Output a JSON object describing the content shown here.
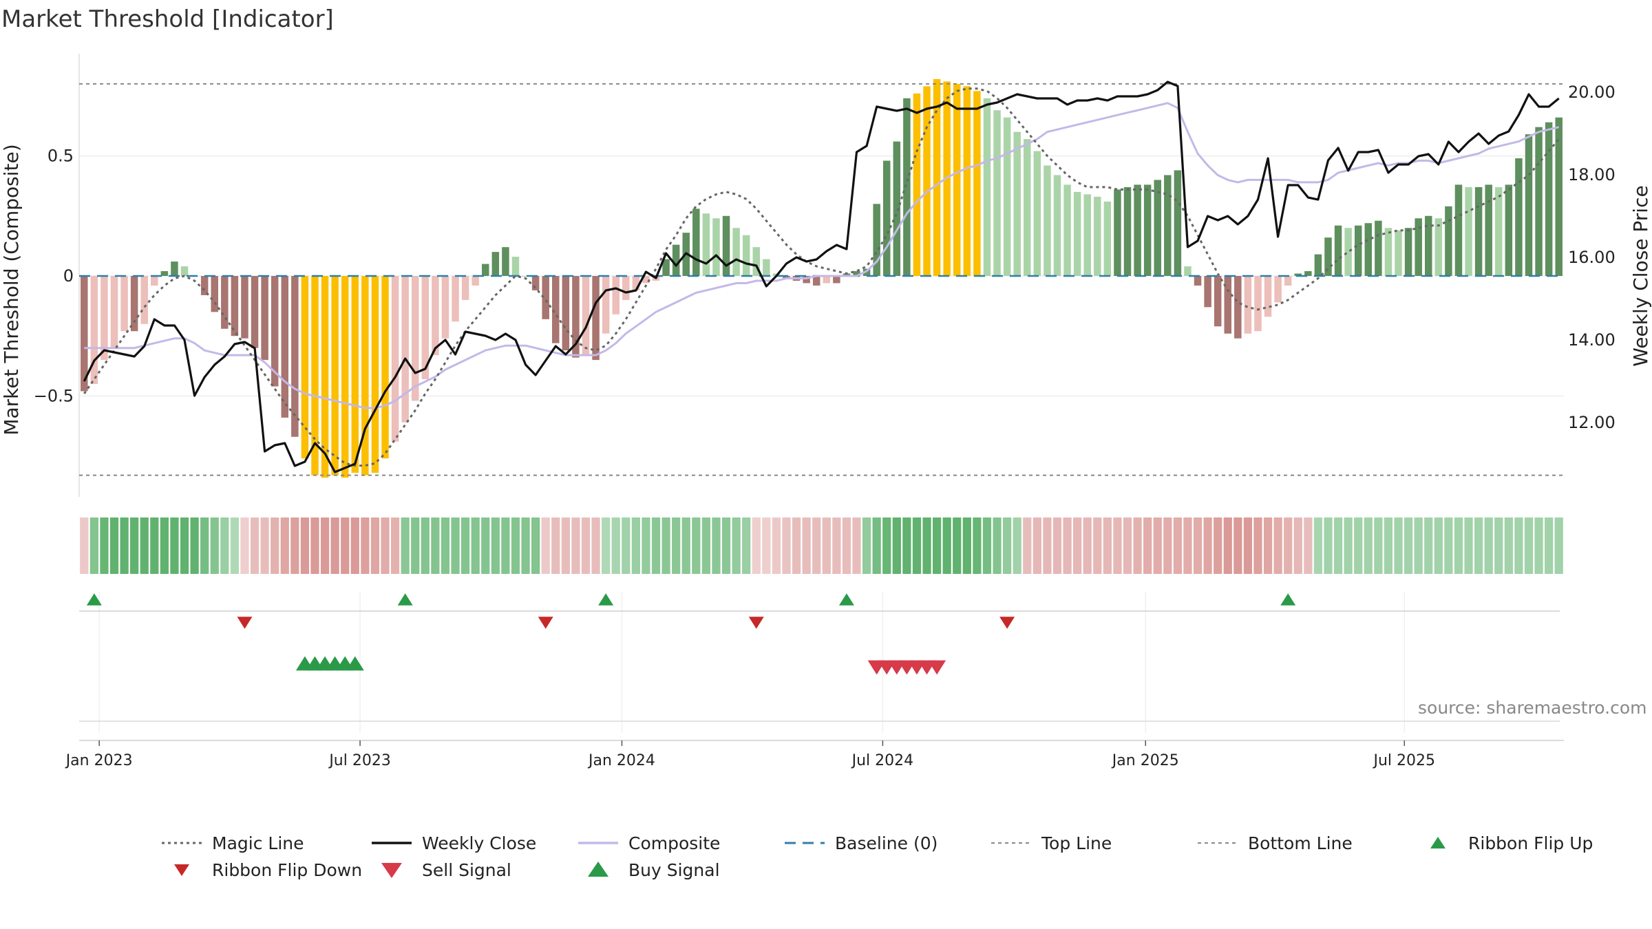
{
  "title": "Market Threshold [Indicator]",
  "source": "source: sharemaestro.com",
  "colors": {
    "magic": "#666666",
    "close": "#111111",
    "composite": "#c4b8e8",
    "baseline": "#2f7fa8",
    "top_line": "#888888",
    "bottom_line": "#888888",
    "bar_pos_strong": "#5e8f5e",
    "bar_pos_weak": "#aad4a8",
    "bar_neg_strong": "#a87570",
    "bar_neg_weak": "#ecbfba",
    "bar_extreme": "#fbbf00",
    "ribbon_green": "#4aa85a",
    "ribbon_red": "#c96a66",
    "buy": "#2a9a48",
    "sell": "#d73a49",
    "flip_up": "#2a9a48",
    "flip_down": "#c62828"
  },
  "chart_data": {
    "type": "bar",
    "title": "Market Threshold [Indicator]",
    "ylabel": "Market Threshold (Composite)",
    "y2label": "Weekly Close Price",
    "ylim": [
      -0.92,
      0.92
    ],
    "y2lim": [
      10.2,
      20.9
    ],
    "y_ticks": [
      -0.5,
      0,
      0.5
    ],
    "y_tick_labels": [
      "−0.5",
      "0",
      "0.5"
    ],
    "y2_ticks": [
      12,
      14,
      16,
      18,
      20
    ],
    "y2_tick_labels": [
      "12.00",
      "14.00",
      "16.00",
      "18.00",
      "20.00"
    ],
    "x_ticks": [
      {
        "label": "Jan 2023",
        "week": 1.5
      },
      {
        "label": "Jul 2023",
        "week": 27.5
      },
      {
        "label": "Jan 2024",
        "week": 53.6
      },
      {
        "label": "Jul 2024",
        "week": 79.6
      },
      {
        "label": "Jan 2025",
        "week": 105.8
      },
      {
        "label": "Jul 2025",
        "week": 131.6
      }
    ],
    "top_line": 0.8,
    "bottom_line": -0.83,
    "baseline": 0,
    "composite_bars": [
      -0.48,
      -0.45,
      -0.35,
      -0.3,
      -0.23,
      -0.23,
      -0.2,
      -0.04,
      0.02,
      0.06,
      0.04,
      0.0,
      -0.08,
      -0.15,
      -0.22,
      -0.25,
      -0.26,
      -0.3,
      -0.35,
      -0.46,
      -0.59,
      -0.67,
      -0.76,
      -0.83,
      -0.84,
      -0.83,
      -0.84,
      -0.82,
      -0.83,
      -0.82,
      -0.76,
      -0.69,
      -0.61,
      -0.52,
      -0.43,
      -0.33,
      -0.26,
      -0.19,
      -0.1,
      -0.04,
      0.05,
      0.1,
      0.12,
      0.08,
      0.0,
      -0.06,
      -0.18,
      -0.28,
      -0.31,
      -0.34,
      -0.33,
      -0.35,
      -0.24,
      -0.16,
      -0.1,
      -0.06,
      -0.03,
      -0.02,
      0.07,
      0.13,
      0.18,
      0.28,
      0.26,
      0.24,
      0.25,
      0.2,
      0.17,
      0.12,
      0.07,
      0.01,
      -0.01,
      -0.02,
      -0.03,
      -0.04,
      -0.03,
      -0.03,
      0.01,
      0.02,
      0.03,
      0.3,
      0.48,
      0.56,
      0.74,
      0.76,
      0.79,
      0.82,
      0.81,
      0.8,
      0.79,
      0.77,
      0.74,
      0.69,
      0.66,
      0.6,
      0.57,
      0.52,
      0.46,
      0.42,
      0.38,
      0.35,
      0.34,
      0.33,
      0.31,
      0.36,
      0.37,
      0.38,
      0.38,
      0.4,
      0.42,
      0.44,
      0.04,
      -0.04,
      -0.13,
      -0.21,
      -0.24,
      -0.26,
      -0.24,
      -0.23,
      -0.17,
      -0.11,
      -0.04,
      0.01,
      0.02,
      0.09,
      0.16,
      0.21,
      0.2,
      0.21,
      0.22,
      0.23,
      0.2,
      0.19,
      0.2,
      0.24,
      0.25,
      0.24,
      0.29,
      0.38,
      0.37,
      0.37,
      0.38,
      0.37,
      0.38,
      0.49,
      0.59,
      0.62,
      0.64,
      0.66
    ],
    "weekly_close": [
      13.0,
      13.5,
      13.75,
      13.7,
      13.65,
      13.6,
      13.85,
      14.5,
      14.35,
      14.35,
      14.0,
      12.65,
      13.1,
      13.4,
      13.6,
      13.9,
      13.95,
      13.8,
      11.3,
      11.45,
      11.5,
      10.95,
      11.05,
      11.5,
      11.25,
      10.8,
      10.9,
      11.0,
      11.85,
      12.3,
      12.75,
      13.1,
      13.55,
      13.2,
      13.3,
      13.8,
      14.0,
      13.65,
      14.2,
      14.15,
      14.1,
      14.0,
      14.15,
      14.0,
      13.4,
      13.15,
      13.5,
      13.85,
      13.65,
      13.9,
      14.3,
      14.9,
      15.2,
      15.25,
      15.15,
      15.2,
      15.65,
      15.5,
      16.1,
      15.8,
      16.1,
      15.95,
      15.85,
      16.05,
      15.8,
      15.95,
      15.85,
      15.8,
      15.3,
      15.55,
      15.85,
      16.0,
      15.9,
      15.95,
      16.15,
      16.3,
      16.2,
      18.55,
      18.7,
      19.65,
      19.6,
      19.55,
      19.6,
      19.5,
      19.6,
      19.65,
      19.75,
      19.6,
      19.6,
      19.6,
      19.7,
      19.75,
      19.85,
      19.95,
      19.9,
      19.85,
      19.85,
      19.85,
      19.7,
      19.8,
      19.8,
      19.85,
      19.8,
      19.9,
      19.9,
      19.9,
      19.95,
      20.05,
      20.25,
      20.15,
      16.25,
      16.4,
      17.0,
      16.9,
      17.0,
      16.8,
      17.0,
      17.4,
      18.4,
      16.5,
      17.75,
      17.75,
      17.45,
      17.4,
      18.35,
      18.65,
      18.1,
      18.55,
      18.55,
      18.6,
      18.05,
      18.25,
      18.25,
      18.45,
      18.5,
      18.25,
      18.8,
      18.55,
      18.8,
      19.0,
      18.75,
      18.95,
      19.05,
      19.45,
      19.95,
      19.65,
      19.65,
      19.85
    ],
    "composite_line": [
      -0.3,
      -0.3,
      -0.3,
      -0.3,
      -0.3,
      -0.3,
      -0.29,
      -0.28,
      -0.27,
      -0.26,
      -0.26,
      -0.28,
      -0.31,
      -0.32,
      -0.33,
      -0.33,
      -0.33,
      -0.33,
      -0.36,
      -0.4,
      -0.44,
      -0.47,
      -0.49,
      -0.5,
      -0.51,
      -0.52,
      -0.53,
      -0.54,
      -0.55,
      -0.55,
      -0.54,
      -0.52,
      -0.49,
      -0.46,
      -0.44,
      -0.42,
      -0.39,
      -0.37,
      -0.35,
      -0.33,
      -0.31,
      -0.3,
      -0.29,
      -0.29,
      -0.29,
      -0.3,
      -0.31,
      -0.32,
      -0.33,
      -0.33,
      -0.33,
      -0.33,
      -0.31,
      -0.28,
      -0.24,
      -0.21,
      -0.18,
      -0.15,
      -0.13,
      -0.11,
      -0.09,
      -0.07,
      -0.06,
      -0.05,
      -0.04,
      -0.03,
      -0.03,
      -0.02,
      -0.02,
      -0.02,
      -0.01,
      -0.01,
      -0.01,
      0.0,
      0.0,
      0.0,
      0.0,
      0.0,
      0.02,
      0.06,
      0.12,
      0.19,
      0.26,
      0.31,
      0.35,
      0.38,
      0.41,
      0.43,
      0.45,
      0.46,
      0.48,
      0.49,
      0.51,
      0.53,
      0.55,
      0.57,
      0.6,
      0.61,
      0.62,
      0.63,
      0.64,
      0.65,
      0.66,
      0.67,
      0.68,
      0.69,
      0.7,
      0.71,
      0.72,
      0.7,
      0.6,
      0.51,
      0.46,
      0.42,
      0.4,
      0.39,
      0.4,
      0.4,
      0.4,
      0.4,
      0.4,
      0.39,
      0.39,
      0.39,
      0.4,
      0.43,
      0.44,
      0.45,
      0.46,
      0.47,
      0.46,
      0.47,
      0.47,
      0.48,
      0.48,
      0.47,
      0.48,
      0.49,
      0.5,
      0.51,
      0.53,
      0.54,
      0.55,
      0.56,
      0.58,
      0.6,
      0.61,
      0.62
    ],
    "magic_line": [
      -0.49,
      -0.43,
      -0.37,
      -0.31,
      -0.25,
      -0.19,
      -0.13,
      -0.08,
      -0.04,
      -0.01,
      0.0,
      -0.02,
      -0.06,
      -0.11,
      -0.17,
      -0.23,
      -0.29,
      -0.35,
      -0.41,
      -0.47,
      -0.53,
      -0.58,
      -0.63,
      -0.68,
      -0.72,
      -0.75,
      -0.78,
      -0.79,
      -0.79,
      -0.78,
      -0.74,
      -0.68,
      -0.62,
      -0.56,
      -0.49,
      -0.43,
      -0.36,
      -0.29,
      -0.23,
      -0.18,
      -0.13,
      -0.08,
      -0.04,
      0.0,
      -0.01,
      -0.05,
      -0.1,
      -0.16,
      -0.22,
      -0.27,
      -0.3,
      -0.31,
      -0.29,
      -0.24,
      -0.18,
      -0.11,
      -0.04,
      0.03,
      0.11,
      0.17,
      0.24,
      0.29,
      0.32,
      0.34,
      0.35,
      0.34,
      0.32,
      0.28,
      0.23,
      0.18,
      0.13,
      0.09,
      0.06,
      0.04,
      0.03,
      0.02,
      0.01,
      0.02,
      0.04,
      0.1,
      0.17,
      0.26,
      0.39,
      0.52,
      0.62,
      0.69,
      0.74,
      0.77,
      0.78,
      0.78,
      0.77,
      0.74,
      0.7,
      0.65,
      0.6,
      0.55,
      0.5,
      0.46,
      0.42,
      0.39,
      0.37,
      0.37,
      0.37,
      0.36,
      0.36,
      0.36,
      0.36,
      0.35,
      0.34,
      0.31,
      0.25,
      0.17,
      0.09,
      0.01,
      -0.06,
      -0.11,
      -0.13,
      -0.14,
      -0.13,
      -0.12,
      -0.1,
      -0.07,
      -0.04,
      -0.01,
      0.03,
      0.07,
      0.1,
      0.13,
      0.15,
      0.17,
      0.18,
      0.19,
      0.19,
      0.2,
      0.21,
      0.21,
      0.23,
      0.25,
      0.27,
      0.29,
      0.31,
      0.33,
      0.36,
      0.39,
      0.42,
      0.47,
      0.52,
      0.57
    ],
    "ribbon": [
      -0.2,
      0.6,
      0.8,
      0.85,
      0.85,
      0.85,
      0.85,
      0.85,
      0.85,
      0.85,
      0.85,
      0.85,
      0.7,
      0.6,
      0.45,
      0.3,
      -0.15,
      -0.3,
      -0.3,
      -0.4,
      -0.5,
      -0.55,
      -0.6,
      -0.6,
      -0.6,
      -0.6,
      -0.6,
      -0.6,
      -0.55,
      -0.5,
      -0.45,
      -0.4,
      0.55,
      0.6,
      0.6,
      0.6,
      0.6,
      0.6,
      0.6,
      0.6,
      0.6,
      0.6,
      0.6,
      0.6,
      0.6,
      0.6,
      -0.2,
      -0.3,
      -0.3,
      -0.3,
      -0.3,
      -0.3,
      0.3,
      0.35,
      0.4,
      0.45,
      0.5,
      0.55,
      0.55,
      0.55,
      0.55,
      0.55,
      0.55,
      0.55,
      0.55,
      0.5,
      0.45,
      -0.15,
      -0.15,
      -0.2,
      -0.25,
      -0.3,
      -0.3,
      -0.3,
      -0.3,
      -0.3,
      -0.3,
      -0.3,
      0.5,
      0.7,
      0.8,
      0.85,
      0.85,
      0.85,
      0.85,
      0.85,
      0.85,
      0.85,
      0.85,
      0.8,
      0.7,
      0.6,
      0.5,
      0.4,
      -0.3,
      -0.35,
      -0.35,
      -0.35,
      -0.35,
      -0.35,
      -0.35,
      -0.35,
      -0.35,
      -0.35,
      -0.35,
      -0.4,
      -0.45,
      -0.45,
      -0.45,
      -0.45,
      -0.45,
      -0.45,
      -0.5,
      -0.55,
      -0.6,
      -0.6,
      -0.6,
      -0.55,
      -0.5,
      -0.45,
      -0.4,
      -0.35,
      -0.3,
      0.35,
      0.4,
      0.4,
      0.4,
      0.4,
      0.4,
      0.4,
      0.4,
      0.4,
      0.4,
      0.4,
      0.4,
      0.4,
      0.4,
      0.4,
      0.4,
      0.4,
      0.4,
      0.4,
      0.4,
      0.4,
      0.4,
      0.4,
      0.4,
      0.4
    ],
    "ribbon_flip_up": [
      1,
      32,
      52,
      76,
      120
    ],
    "ribbon_flip_down": [
      16,
      46,
      67,
      92
    ],
    "buy_signals": [
      22,
      23,
      24,
      25,
      26,
      27
    ],
    "sell_signals": [
      79,
      80,
      81,
      82,
      83,
      84,
      85
    ],
    "legend": [
      {
        "label": "Magic Line",
        "key": "magic",
        "style": "dotted"
      },
      {
        "label": "Weekly Close",
        "key": "close",
        "style": "solid"
      },
      {
        "label": "Composite",
        "key": "composite",
        "style": "solid"
      },
      {
        "label": "Baseline (0)",
        "key": "baseline",
        "style": "dashed"
      },
      {
        "label": "Top Line",
        "key": "top_line",
        "style": "dashed-fine"
      },
      {
        "label": "Bottom Line",
        "key": "bottom_line",
        "style": "dashed-fine"
      },
      {
        "label": "Ribbon Flip Up",
        "key": "flip_up",
        "style": "tri-up-small"
      },
      {
        "label": "Ribbon Flip Down",
        "key": "flip_down",
        "style": "tri-down-small"
      },
      {
        "label": "Sell Signal",
        "key": "sell",
        "style": "tri-down-large"
      },
      {
        "label": "Buy Signal",
        "key": "buy",
        "style": "tri-up-large"
      }
    ],
    "legend_position": "bottom"
  }
}
